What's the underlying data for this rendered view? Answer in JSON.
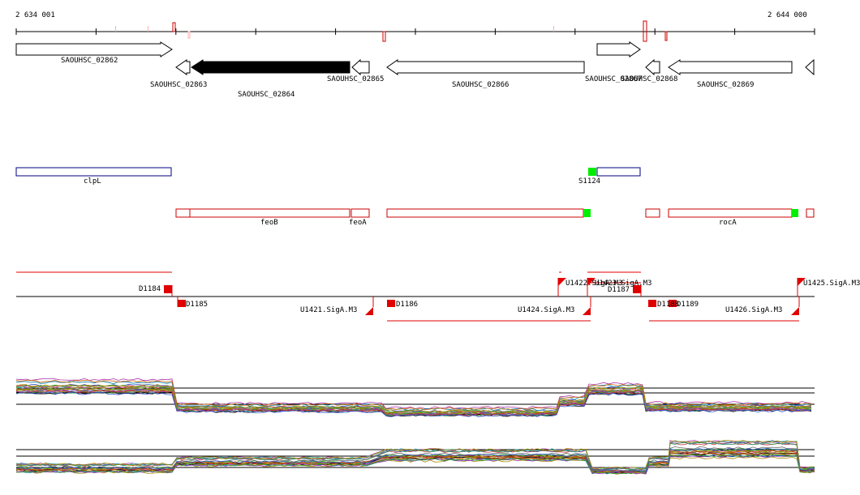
{
  "axis": {
    "start_label": "2 634 001",
    "end_label": "2 644 000"
  },
  "genes": [
    {
      "label": "SAOUHSC_02862",
      "strand": "+",
      "filled": false
    },
    {
      "label": "SAOUHSC_02863",
      "strand": "-",
      "filled": false
    },
    {
      "label": "SAOUHSC_02864",
      "strand": "-",
      "filled": true
    },
    {
      "label": "SAOUHSC_02865",
      "strand": "-",
      "filled": false
    },
    {
      "label": "SAOUHSC_02866",
      "strand": "-",
      "filled": false
    },
    {
      "label": "SAOUHSC_02867",
      "strand": "+",
      "filled": false
    },
    {
      "label": "SAOUHSC_02868",
      "strand": "-",
      "filled": false
    },
    {
      "label": "SAOUHSC_02869",
      "strand": "-",
      "filled": false
    },
    {
      "label": "",
      "strand": "-",
      "filled": false
    }
  ],
  "operons_blue": [
    {
      "label": "clpL"
    },
    {
      "label": "S1124"
    }
  ],
  "operons_red": [
    {
      "label": "feoB"
    },
    {
      "label": "feoA"
    },
    {
      "label": "rocA"
    }
  ],
  "features": [
    {
      "label": "D1184"
    },
    {
      "label": "D1185"
    },
    {
      "label": "U1421.SigA.M3"
    },
    {
      "label": "D1186"
    },
    {
      "label": "U1424.SigA.M3"
    },
    {
      "label": "U1422.SigA.M3"
    },
    {
      "label": "U1423.SigA.M3"
    },
    {
      "label": "D1187"
    },
    {
      "label": "D1188"
    },
    {
      "label": "D1189"
    },
    {
      "label": "U1426.SigA.M3"
    },
    {
      "label": "U1425.SigA.M3"
    }
  ],
  "colors": {
    "forward_feature": "#e00000",
    "operon_blue": "#000080",
    "operon_red": "#cc0000",
    "highlight": "#00ee00"
  }
}
